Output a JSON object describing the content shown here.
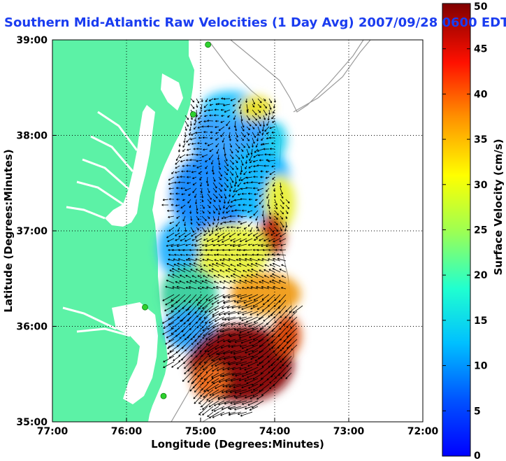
{
  "title": "Southern Mid-Atlantic Raw Velocities (1 Day Avg) 2007/09/28 0600 EDT",
  "map": {
    "xlabel": "Longitude (Degrees:Minutes)",
    "ylabel": "Latitude (Degrees:Minutes)",
    "lon_range": [
      -77,
      -72
    ],
    "lat_range": [
      35,
      39
    ],
    "x_ticks": [
      {
        "value": -77,
        "label": "77:00"
      },
      {
        "value": -76,
        "label": "76:00"
      },
      {
        "value": -75,
        "label": "75:00"
      },
      {
        "value": -74,
        "label": "74:00"
      },
      {
        "value": -73,
        "label": "73:00"
      },
      {
        "value": -72,
        "label": "72:00"
      }
    ],
    "y_ticks": [
      {
        "value": 39,
        "label": "39:00"
      },
      {
        "value": 38,
        "label": "38:00"
      },
      {
        "value": 37,
        "label": "37:00"
      },
      {
        "value": 36,
        "label": "36:00"
      },
      {
        "value": 35,
        "label": "35:00"
      }
    ],
    "grid": "dotted",
    "land_color": "#5cf2a6",
    "station_color": "#2ed12e",
    "stations": [
      {
        "lon": -74.9,
        "lat": 38.95
      },
      {
        "lon": -75.1,
        "lat": 38.22
      },
      {
        "lon": -75.75,
        "lat": 36.2
      },
      {
        "lon": -75.5,
        "lat": 35.27
      }
    ]
  },
  "colorbar": {
    "label": "Surface Velocity (cm/s)",
    "min": 0,
    "max": 50,
    "ticks": [
      {
        "value": 50,
        "label": "50"
      },
      {
        "value": 45,
        "label": "45"
      },
      {
        "value": 40,
        "label": "40"
      },
      {
        "value": 35,
        "label": "35"
      },
      {
        "value": 30,
        "label": "30"
      },
      {
        "value": 25,
        "label": "25"
      },
      {
        "value": 20,
        "label": "20"
      },
      {
        "value": 15,
        "label": "15"
      },
      {
        "value": 10,
        "label": "10"
      },
      {
        "value": 5,
        "label": "5"
      },
      {
        "value": 0,
        "label": "0"
      }
    ],
    "colormap": "jet"
  }
}
